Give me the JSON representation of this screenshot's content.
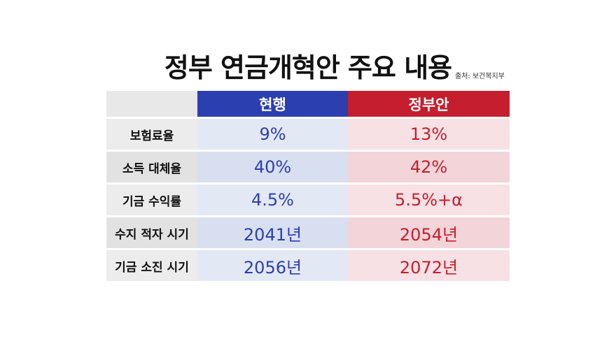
{
  "title": "정부 연금개혁안 주요 내용",
  "source": "출처: 보건복지부",
  "table": {
    "headers": [
      "",
      "현행",
      "정부안"
    ],
    "rows": [
      {
        "label": "보험료율",
        "current": "9%",
        "government": "13%"
      },
      {
        "label": "소득 대체율",
        "current": "40%",
        "government": "42%"
      },
      {
        "label": "기금 수익률",
        "current": "4.5%",
        "government": "5.5%+α"
      },
      {
        "label": "수지 적자 시기",
        "current": "2041년",
        "government": "2054년"
      },
      {
        "label": "기금 소진 시기",
        "current": "2056년",
        "government": "2072년"
      }
    ]
  },
  "colors": {
    "current_header": "#2c3fb1",
    "government_header": "#c51e2e",
    "current_text": "#2c3fb1",
    "government_text": "#c51e2e"
  }
}
